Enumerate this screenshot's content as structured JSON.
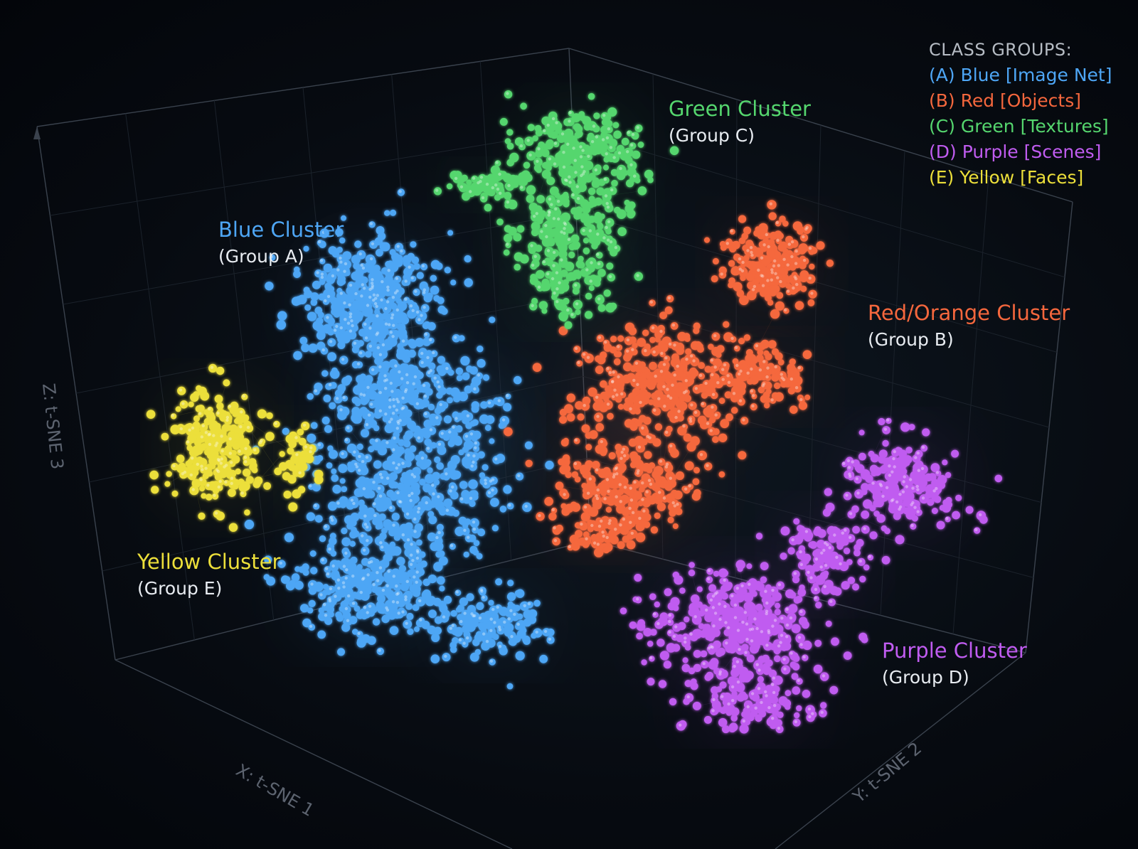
{
  "chart_data": {
    "type": "scatter",
    "projection": "3d",
    "xlabel": "X: t-SNE 1",
    "ylabel": "Y: t-SNE 2",
    "zlabel": "Z: t-SNE 3",
    "grid": true,
    "legend": {
      "title": "CLASS GROUPS:",
      "placement": "top-right",
      "entries": [
        {
          "label": "(A) Blue [Image Net]",
          "color": "#4ea6f5"
        },
        {
          "label": "(B) Red [Objects]",
          "color": "#f5673d"
        },
        {
          "label": "(C) Green [Textures]",
          "color": "#55d66e"
        },
        {
          "label": "(D) Purple [Scenes]",
          "color": "#c05cf0"
        },
        {
          "label": "(E) Yellow [Faces]",
          "color": "#ecdf3a"
        }
      ]
    },
    "series": [
      {
        "name": "Blue Cluster",
        "group": "(Group A)",
        "color": "#4ea6f5"
      },
      {
        "name": "Red/Orange Cluster",
        "group": "(Group B)",
        "color": "#f5673d"
      },
      {
        "name": "Green Cluster",
        "group": "(Group C)",
        "color": "#55d66e"
      },
      {
        "name": "Purple Cluster",
        "group": "(Group D)",
        "color": "#c05cf0"
      },
      {
        "name": "Yellow Cluster",
        "group": "(Group E)",
        "color": "#ecdf3a"
      }
    ]
  }
}
